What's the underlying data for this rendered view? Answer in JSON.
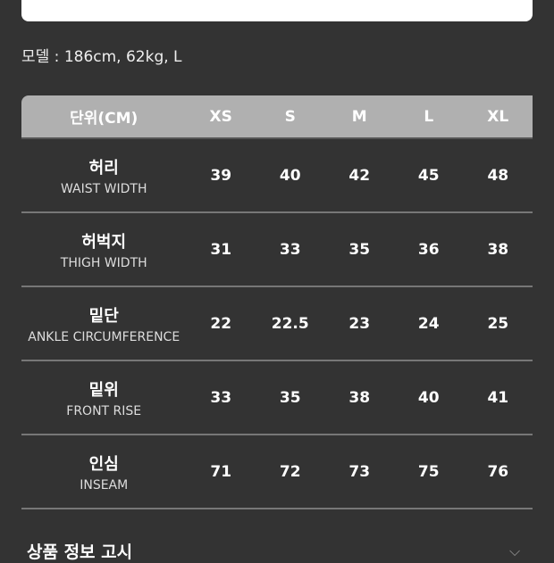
{
  "model_info": "모델 : 186cm, 62kg, L",
  "table": {
    "header": [
      "단위(CM)",
      "XS",
      "S",
      "M",
      "L",
      "XL"
    ],
    "rows": [
      {
        "ko": "허리",
        "en": "WAIST WIDTH",
        "values": [
          "39",
          "40",
          "42",
          "45",
          "48"
        ]
      },
      {
        "ko": "허벅지",
        "en": "THIGH WIDTH",
        "values": [
          "31",
          "33",
          "35",
          "36",
          "38"
        ]
      },
      {
        "ko": "밑단",
        "en": "ANKLE CIRCUMFERENCE",
        "values": [
          "22",
          "22.5",
          "23",
          "24",
          "25"
        ]
      },
      {
        "ko": "밑위",
        "en": "FRONT RISE",
        "values": [
          "33",
          "35",
          "38",
          "40",
          "41"
        ]
      },
      {
        "ko": "인심",
        "en": "INSEAM",
        "values": [
          "71",
          "72",
          "73",
          "75",
          "76"
        ]
      }
    ]
  },
  "section_title": "상품 정보 고시",
  "icons": {
    "expand": "chevron-down-icon"
  }
}
